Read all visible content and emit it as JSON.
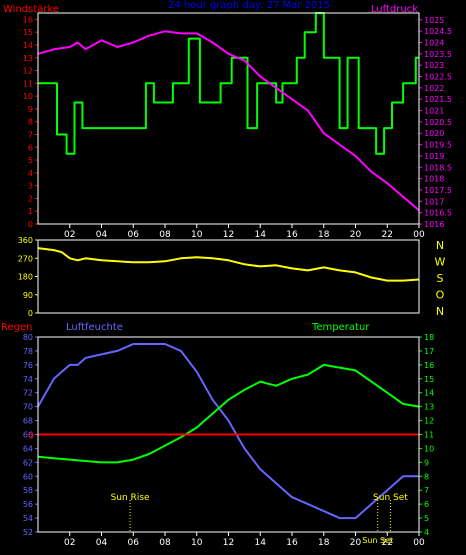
{
  "colors": {
    "background": "#000000",
    "frame": "#ffffff",
    "wind": "#00ff00",
    "pressure": "#ff00ff",
    "direction": "#ffff00",
    "humidity": "#6666ff",
    "temperature": "#00ff00",
    "rain": "#ff0000",
    "title": "#0000ff",
    "sun_marker": "#ffff00"
  },
  "chart_data": [
    {
      "type": "line",
      "title": "24 hour graph day: 27 Mar 2015",
      "left_label": "Windstärke",
      "right_label": "Luftdruck",
      "x_ticks": [
        "02",
        "04",
        "06",
        "08",
        "10",
        "12",
        "14",
        "16",
        "18",
        "20",
        "22",
        "00"
      ],
      "y_left_ticks": [
        "0",
        "1",
        "2",
        "3",
        "4",
        "5",
        "6",
        "7",
        "8",
        "9",
        "10",
        "11",
        "12",
        "13",
        "14",
        "15",
        "16"
      ],
      "y_left_range": [
        0,
        16.5
      ],
      "y_right_ticks": [
        "1016",
        "1016.5",
        "1017",
        "1017.5",
        "1018",
        "1018.5",
        "1019",
        "1019.5",
        "1020",
        "1020.5",
        "1021",
        "1021.5",
        "1022",
        "1022.5",
        "1023",
        "1023.5",
        "1024",
        "1024.5",
        "1025"
      ],
      "y_right_range": [
        1016,
        1025.3
      ],
      "series": [
        {
          "axis": "left",
          "x": [
            0,
            1.2,
            1.2,
            1.8,
            1.8,
            2.3,
            2.3,
            2.8,
            2.8,
            6.8,
            6.8,
            7.3,
            7.3,
            8.5,
            8.5,
            9.5,
            9.5,
            10.2,
            10.2,
            11.5,
            11.5,
            12.2,
            12.2,
            13.2,
            13.2,
            13.8,
            13.8,
            15.0,
            15.0,
            15.4,
            15.4,
            16.3,
            16.3,
            16.8,
            16.8,
            17.5,
            17.5,
            18.0,
            18.0,
            19.0,
            19.0,
            19.5,
            19.5,
            20.2,
            20.2,
            21.3,
            21.3,
            21.8,
            21.8,
            22.3,
            22.3,
            23.0,
            23.0,
            23.8,
            23.8,
            24
          ],
          "values": [
            11,
            11,
            7,
            7,
            5.5,
            5.5,
            9.5,
            9.5,
            7.5,
            7.5,
            11,
            11,
            9.5,
            9.5,
            11,
            11,
            14.5,
            14.5,
            9.5,
            9.5,
            11,
            11,
            13,
            13,
            7.5,
            7.5,
            11,
            11,
            9.5,
            9.5,
            11,
            11,
            13,
            13,
            15,
            15,
            16.5,
            16.5,
            13,
            13,
            7.5,
            7.5,
            13,
            13,
            7.5,
            7.5,
            5.5,
            5.5,
            7.5,
            7.5,
            9.5,
            9.5,
            11,
            11,
            13,
            13
          ]
        },
        {
          "axis": "right",
          "x": [
            0,
            1,
            2,
            2.5,
            3,
            3.5,
            4,
            5,
            6,
            7,
            8,
            9,
            10,
            11,
            12,
            13,
            14,
            15,
            16,
            17,
            18,
            19,
            20,
            21,
            22,
            23,
            24
          ],
          "values": [
            1023.5,
            1023.7,
            1023.8,
            1024.0,
            1023.7,
            1023.9,
            1024.1,
            1023.8,
            1024.0,
            1024.3,
            1024.5,
            1024.4,
            1024.4,
            1024.0,
            1023.5,
            1023.2,
            1022.5,
            1022.0,
            1021.5,
            1021.0,
            1020.0,
            1019.5,
            1019.0,
            1018.3,
            1017.8,
            1017.2,
            1016.6
          ]
        }
      ]
    },
    {
      "type": "line",
      "left_ticks": [
        "360",
        "270",
        "180",
        "90",
        "0"
      ],
      "y_range": [
        0,
        360
      ],
      "right_labels": [
        "N",
        "W",
        "S",
        "O",
        "N"
      ],
      "x_ticks": [
        "02",
        "04",
        "06",
        "08",
        "10",
        "12",
        "14",
        "16",
        "18",
        "20",
        "22",
        "00"
      ],
      "series": [
        {
          "x": [
            0,
            1,
            1.5,
            2,
            2.5,
            3,
            4,
            5,
            6,
            7,
            8,
            9,
            10,
            11,
            12,
            13,
            14,
            15,
            16,
            17,
            18,
            19,
            20,
            21,
            22,
            23,
            24
          ],
          "values": [
            320,
            310,
            300,
            270,
            260,
            270,
            260,
            255,
            250,
            250,
            255,
            270,
            275,
            270,
            260,
            240,
            230,
            235,
            220,
            210,
            225,
            210,
            200,
            175,
            160,
            160,
            165
          ]
        }
      ]
    },
    {
      "type": "line",
      "labels": {
        "rain": "Regen",
        "humidity": "Luftfeuchte",
        "temperature": "Temperatur"
      },
      "y_left_ticks": [
        "52",
        "54",
        "56",
        "58",
        "60",
        "62",
        "64",
        "66",
        "68",
        "70",
        "72",
        "74",
        "76",
        "78",
        "80"
      ],
      "y_left_range": [
        52,
        80
      ],
      "y_right_ticks": [
        "4",
        "5",
        "6",
        "7",
        "8",
        "9",
        "10",
        "11",
        "12",
        "13",
        "14",
        "15",
        "16",
        "17",
        "18"
      ],
      "y_right_range": [
        4,
        18
      ],
      "rain_label": "0",
      "x_ticks": [
        "02",
        "04",
        "06",
        "08",
        "10",
        "12",
        "14",
        "16",
        "18",
        "20",
        "22",
        "00"
      ],
      "annotations": [
        {
          "text": "Sun Rise",
          "x": 5.8
        },
        {
          "text": "Sun Set",
          "x": 22.2
        },
        {
          "text": "Sun Set",
          "x": 21.4
        }
      ],
      "series": [
        {
          "name": "Luftfeuchte",
          "axis": "left",
          "x": [
            0,
            0.5,
            1,
            1.5,
            2,
            2.5,
            3,
            4,
            5,
            6,
            7,
            8,
            9,
            10,
            11,
            12,
            13,
            14,
            15,
            16,
            17,
            18,
            19,
            20,
            21,
            22,
            23,
            24
          ],
          "values": [
            70,
            72,
            74,
            75,
            76,
            76,
            77,
            77.5,
            78,
            79,
            79,
            79,
            78,
            75,
            71,
            68,
            64,
            61,
            59,
            57,
            56,
            55,
            54,
            54,
            56,
            58,
            60,
            60
          ]
        },
        {
          "name": "Temperatur",
          "axis": "right",
          "x": [
            0,
            1,
            2,
            3,
            4,
            5,
            6,
            7,
            8,
            9,
            10,
            11,
            12,
            13,
            14,
            15,
            16,
            17,
            18,
            19,
            20,
            21,
            22,
            23,
            24
          ],
          "values": [
            9.4,
            9.3,
            9.2,
            9.1,
            9.0,
            9.0,
            9.2,
            9.6,
            10.2,
            10.8,
            11.5,
            12.5,
            13.5,
            14.2,
            14.8,
            14.5,
            15.0,
            15.3,
            16.0,
            15.8,
            15.6,
            14.8,
            14.0,
            13.2,
            13.0
          ]
        },
        {
          "name": "Regen",
          "axis": "left",
          "x": [
            0,
            24
          ],
          "values": [
            66,
            66
          ]
        }
      ]
    }
  ]
}
